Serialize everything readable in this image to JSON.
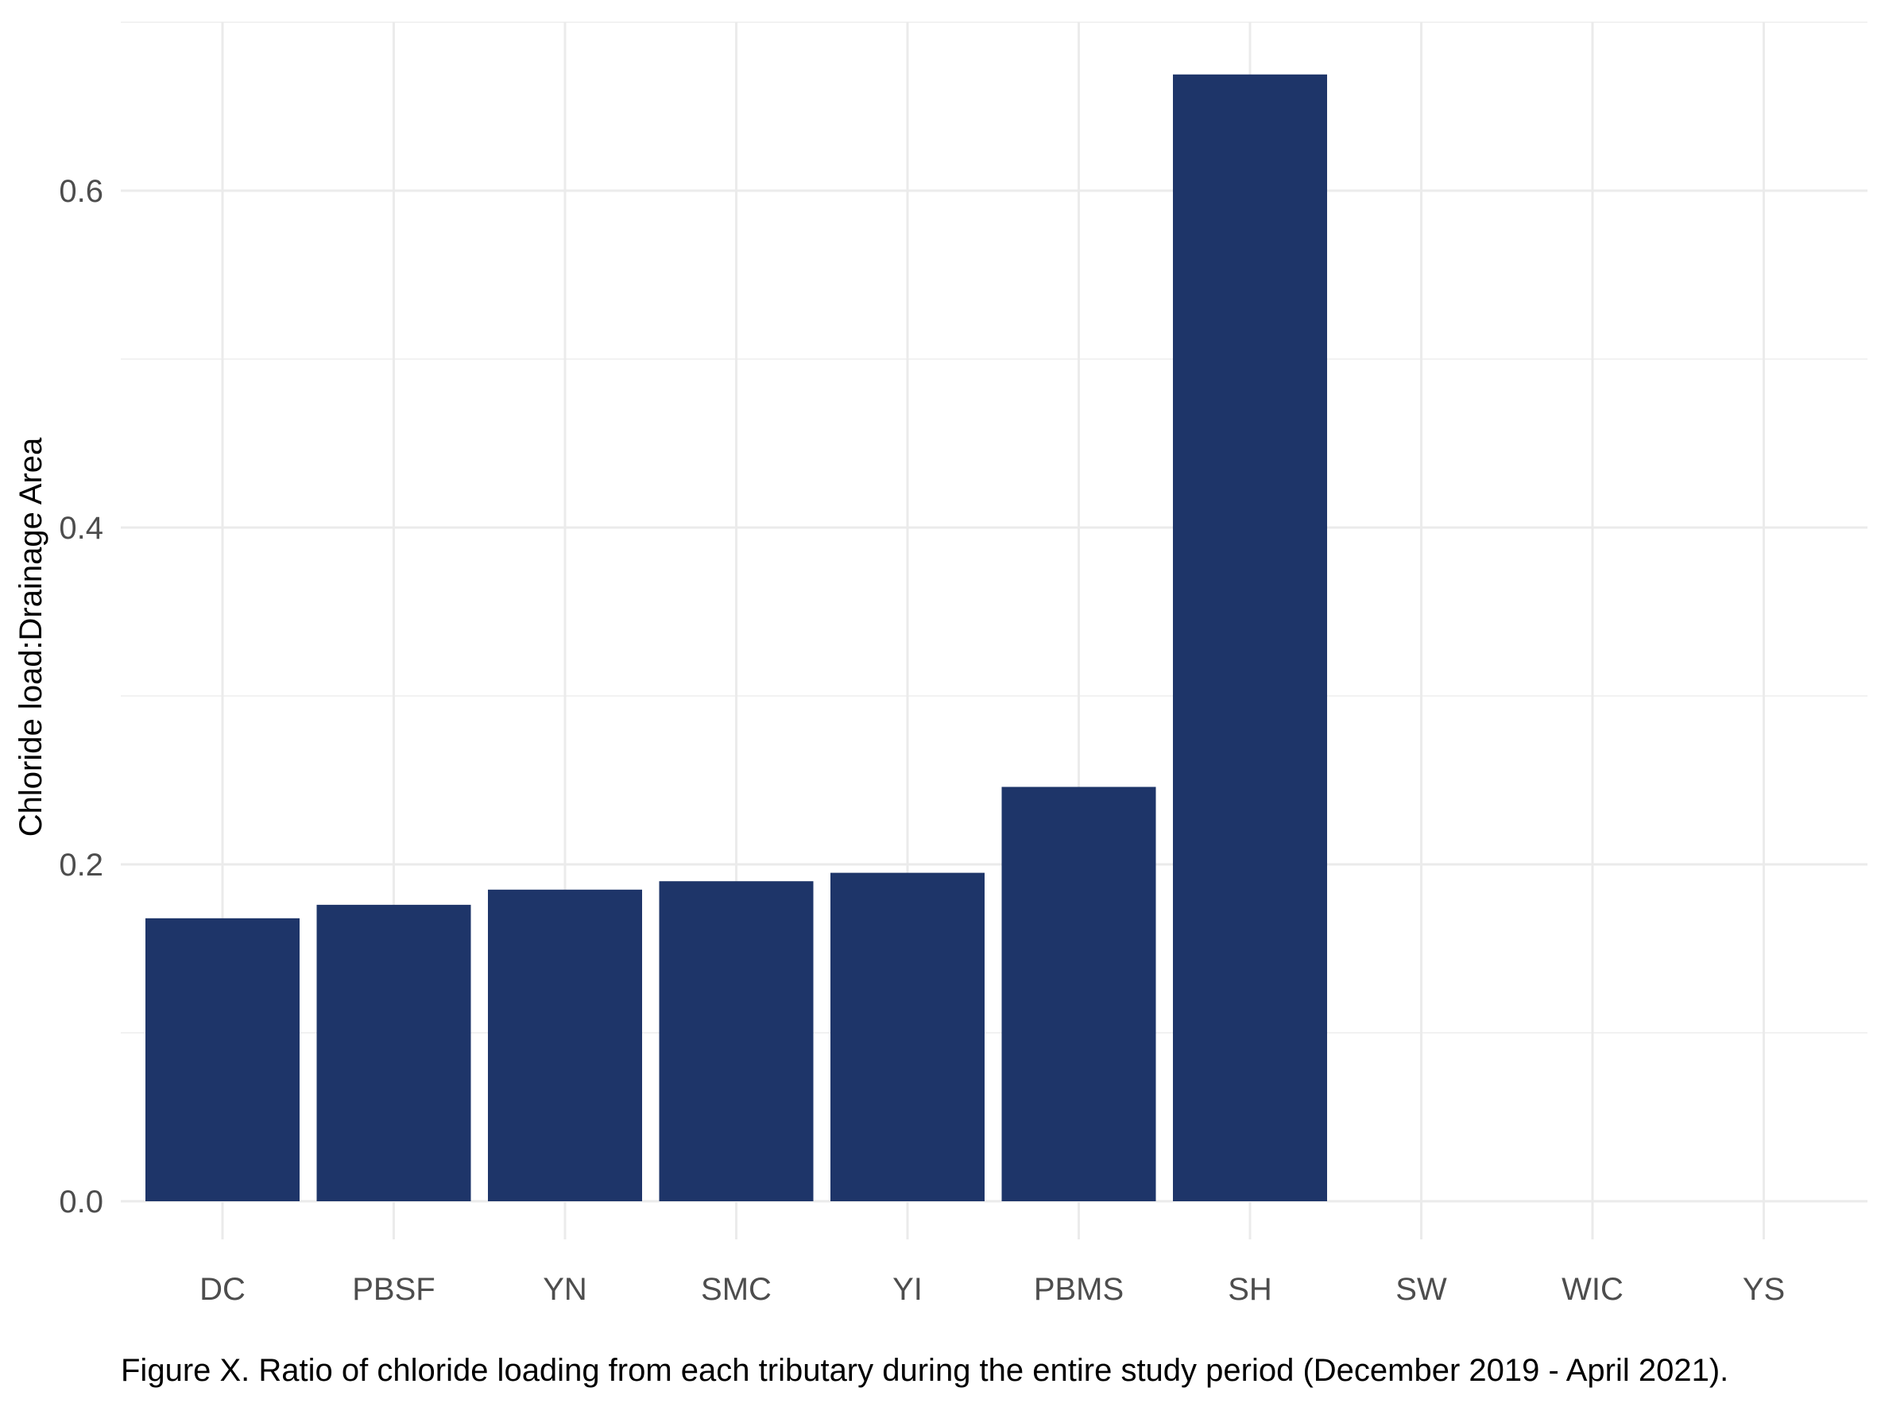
{
  "chart_data": {
    "type": "bar",
    "categories": [
      "DC",
      "PBSF",
      "YN",
      "SMC",
      "YI",
      "PBMS",
      "SH",
      "SW",
      "WIC",
      "YS"
    ],
    "values": [
      0.168,
      0.176,
      0.185,
      0.19,
      0.195,
      0.246,
      0.669,
      0,
      0,
      0
    ],
    "xlabel": "",
    "ylabel": "Chloride load:Drainage Area",
    "ylim": [
      0,
      0.7
    ],
    "yticks": [
      0.0,
      0.2,
      0.4,
      0.6
    ],
    "ytick_labels": [
      "0.0",
      "0.2",
      "0.4",
      "0.6"
    ],
    "grid": true,
    "legend": "none",
    "bar_color": "#1e3569",
    "caption": "Figure X. Ratio of chloride loading from each tributary during the entire study period (December 2019 - April 2021)."
  }
}
